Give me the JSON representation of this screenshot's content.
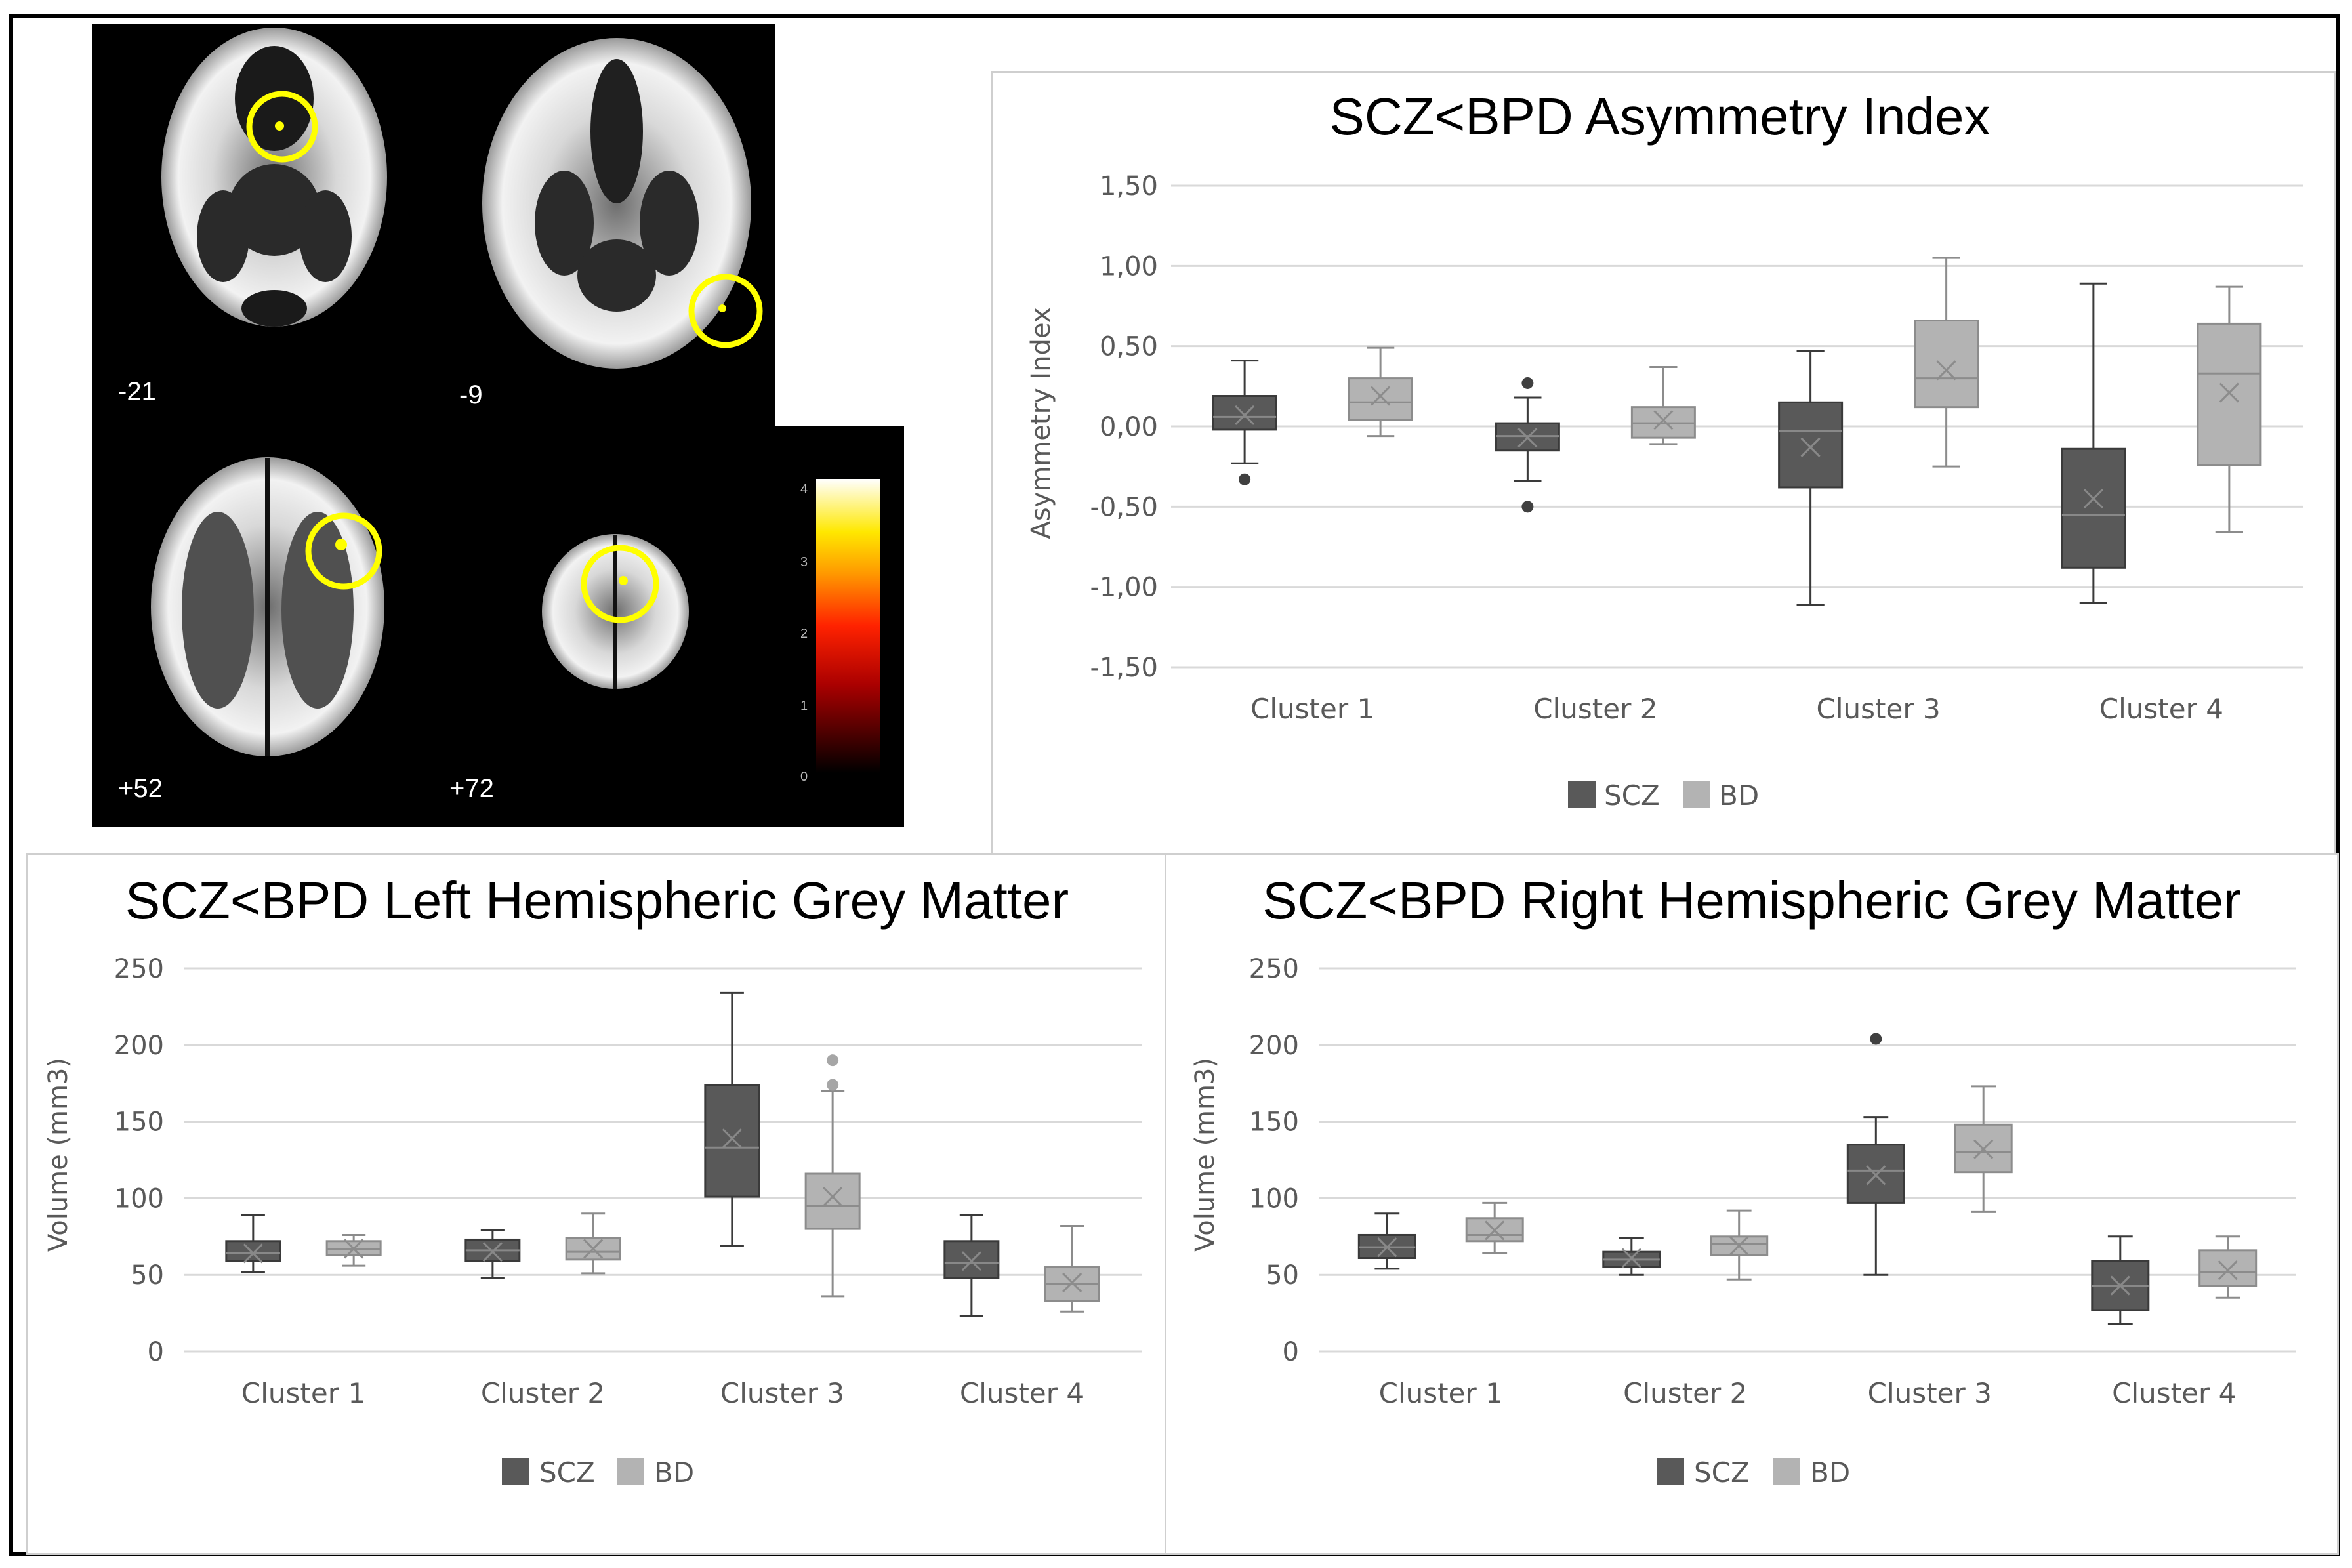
{
  "brain_panel": {
    "slice_labels": [
      "-21",
      "-9",
      "+52",
      "+72"
    ],
    "colorbar_ticks": [
      "4",
      "3",
      "2",
      "1",
      "0"
    ],
    "highlight_color": "#ffff00"
  },
  "legend": {
    "scz_label": "SCZ",
    "bd_label": "BD",
    "scz_color": "#595959",
    "bd_color": "#b3b3b3"
  },
  "chart_data": [
    {
      "type": "boxplot",
      "title": "SCZ<BPD Asymmetry Index",
      "xlabel": "",
      "ylabel": "Asymmetry Index",
      "ylim": [
        -1.5,
        1.5
      ],
      "yticks": [
        -1.5,
        -1.0,
        -0.5,
        0.0,
        0.5,
        1.0,
        1.5
      ],
      "ytick_labels": [
        "-1,50",
        "-1,00",
        "-0,50",
        "0,00",
        "0,50",
        "1,00",
        "1,50"
      ],
      "categories": [
        "Cluster 1",
        "Cluster 2",
        "Cluster 3",
        "Cluster 4"
      ],
      "series": [
        {
          "name": "SCZ",
          "boxes": [
            {
              "min": -0.23,
              "q1": -0.02,
              "median": 0.06,
              "q3": 0.19,
              "max": 0.41,
              "mean": 0.07,
              "outliers": [
                -0.33
              ]
            },
            {
              "min": -0.34,
              "q1": -0.15,
              "median": -0.06,
              "q3": 0.02,
              "max": 0.18,
              "mean": -0.07,
              "outliers": [
                0.27,
                -0.5
              ]
            },
            {
              "min": -1.11,
              "q1": -0.38,
              "median": -0.03,
              "q3": 0.15,
              "max": 0.47,
              "mean": -0.13,
              "outliers": []
            },
            {
              "min": -1.1,
              "q1": -0.88,
              "median": -0.55,
              "q3": -0.14,
              "max": 0.89,
              "mean": -0.45,
              "outliers": []
            }
          ]
        },
        {
          "name": "BD",
          "boxes": [
            {
              "min": -0.06,
              "q1": 0.04,
              "median": 0.15,
              "q3": 0.3,
              "max": 0.49,
              "mean": 0.19,
              "outliers": []
            },
            {
              "min": -0.11,
              "q1": -0.07,
              "median": 0.02,
              "q3": 0.12,
              "max": 0.37,
              "mean": 0.04,
              "outliers": []
            },
            {
              "min": -0.25,
              "q1": 0.12,
              "median": 0.3,
              "q3": 0.66,
              "max": 1.05,
              "mean": 0.35,
              "outliers": []
            },
            {
              "min": -0.66,
              "q1": -0.24,
              "median": 0.33,
              "q3": 0.64,
              "max": 0.87,
              "mean": 0.21,
              "outliers": []
            }
          ]
        }
      ],
      "legend": [
        "SCZ",
        "BD"
      ]
    },
    {
      "type": "boxplot",
      "title": "SCZ<BPD Left Hemispheric Grey Matter",
      "xlabel": "",
      "ylabel": "Volume (mm3)",
      "ylim": [
        0,
        250
      ],
      "yticks": [
        0,
        50,
        100,
        150,
        200,
        250
      ],
      "ytick_labels": [
        "0",
        "50",
        "100",
        "150",
        "200",
        "250"
      ],
      "categories": [
        "Cluster 1",
        "Cluster 2",
        "Cluster 3",
        "Cluster 4"
      ],
      "series": [
        {
          "name": "SCZ",
          "boxes": [
            {
              "min": 52,
              "q1": 59,
              "median": 64,
              "q3": 72,
              "max": 89,
              "mean": 64,
              "outliers": []
            },
            {
              "min": 48,
              "q1": 59,
              "median": 66,
              "q3": 73,
              "max": 79,
              "mean": 65,
              "outliers": []
            },
            {
              "min": 69,
              "q1": 101,
              "median": 133,
              "q3": 174,
              "max": 234,
              "mean": 139,
              "outliers": []
            },
            {
              "min": 23,
              "q1": 48,
              "median": 58,
              "q3": 72,
              "max": 89,
              "mean": 59,
              "outliers": []
            }
          ]
        },
        {
          "name": "BD",
          "boxes": [
            {
              "min": 56,
              "q1": 63,
              "median": 67,
              "q3": 72,
              "max": 76,
              "mean": 67,
              "outliers": []
            },
            {
              "min": 51,
              "q1": 60,
              "median": 65,
              "q3": 74,
              "max": 90,
              "mean": 67,
              "outliers": []
            },
            {
              "min": 36,
              "q1": 80,
              "median": 95,
              "q3": 116,
              "max": 170,
              "mean": 101,
              "outliers": [
                190,
                174
              ]
            },
            {
              "min": 26,
              "q1": 33,
              "median": 44,
              "q3": 55,
              "max": 82,
              "mean": 45,
              "outliers": []
            }
          ]
        }
      ],
      "legend": [
        "SCZ",
        "BD"
      ]
    },
    {
      "type": "boxplot",
      "title": "SCZ<BPD Right Hemispheric Grey Matter",
      "xlabel": "",
      "ylabel": "Volume (mm3)",
      "ylim": [
        0,
        250
      ],
      "yticks": [
        0,
        50,
        100,
        150,
        200,
        250
      ],
      "ytick_labels": [
        "0",
        "50",
        "100",
        "150",
        "200",
        "250"
      ],
      "categories": [
        "Cluster 1",
        "Cluster 2",
        "Cluster 3",
        "Cluster 4"
      ],
      "series": [
        {
          "name": "SCZ",
          "boxes": [
            {
              "min": 54,
              "q1": 61,
              "median": 68,
              "q3": 76,
              "max": 90,
              "mean": 68,
              "outliers": []
            },
            {
              "min": 50,
              "q1": 55,
              "median": 60,
              "q3": 65,
              "max": 74,
              "mean": 61,
              "outliers": []
            },
            {
              "min": 50,
              "q1": 97,
              "median": 118,
              "q3": 135,
              "max": 153,
              "mean": 115,
              "outliers": [
                204
              ]
            },
            {
              "min": 18,
              "q1": 27,
              "median": 43,
              "q3": 59,
              "max": 75,
              "mean": 43,
              "outliers": []
            }
          ]
        },
        {
          "name": "BD",
          "boxes": [
            {
              "min": 64,
              "q1": 72,
              "median": 76,
              "q3": 87,
              "max": 97,
              "mean": 79,
              "outliers": []
            },
            {
              "min": 47,
              "q1": 63,
              "median": 70,
              "q3": 75,
              "max": 92,
              "mean": 69,
              "outliers": []
            },
            {
              "min": 91,
              "q1": 117,
              "median": 130,
              "q3": 148,
              "max": 173,
              "mean": 132,
              "outliers": []
            },
            {
              "min": 35,
              "q1": 43,
              "median": 52,
              "q3": 66,
              "max": 75,
              "mean": 53,
              "outliers": []
            }
          ]
        }
      ],
      "legend": [
        "SCZ",
        "BD"
      ]
    }
  ]
}
